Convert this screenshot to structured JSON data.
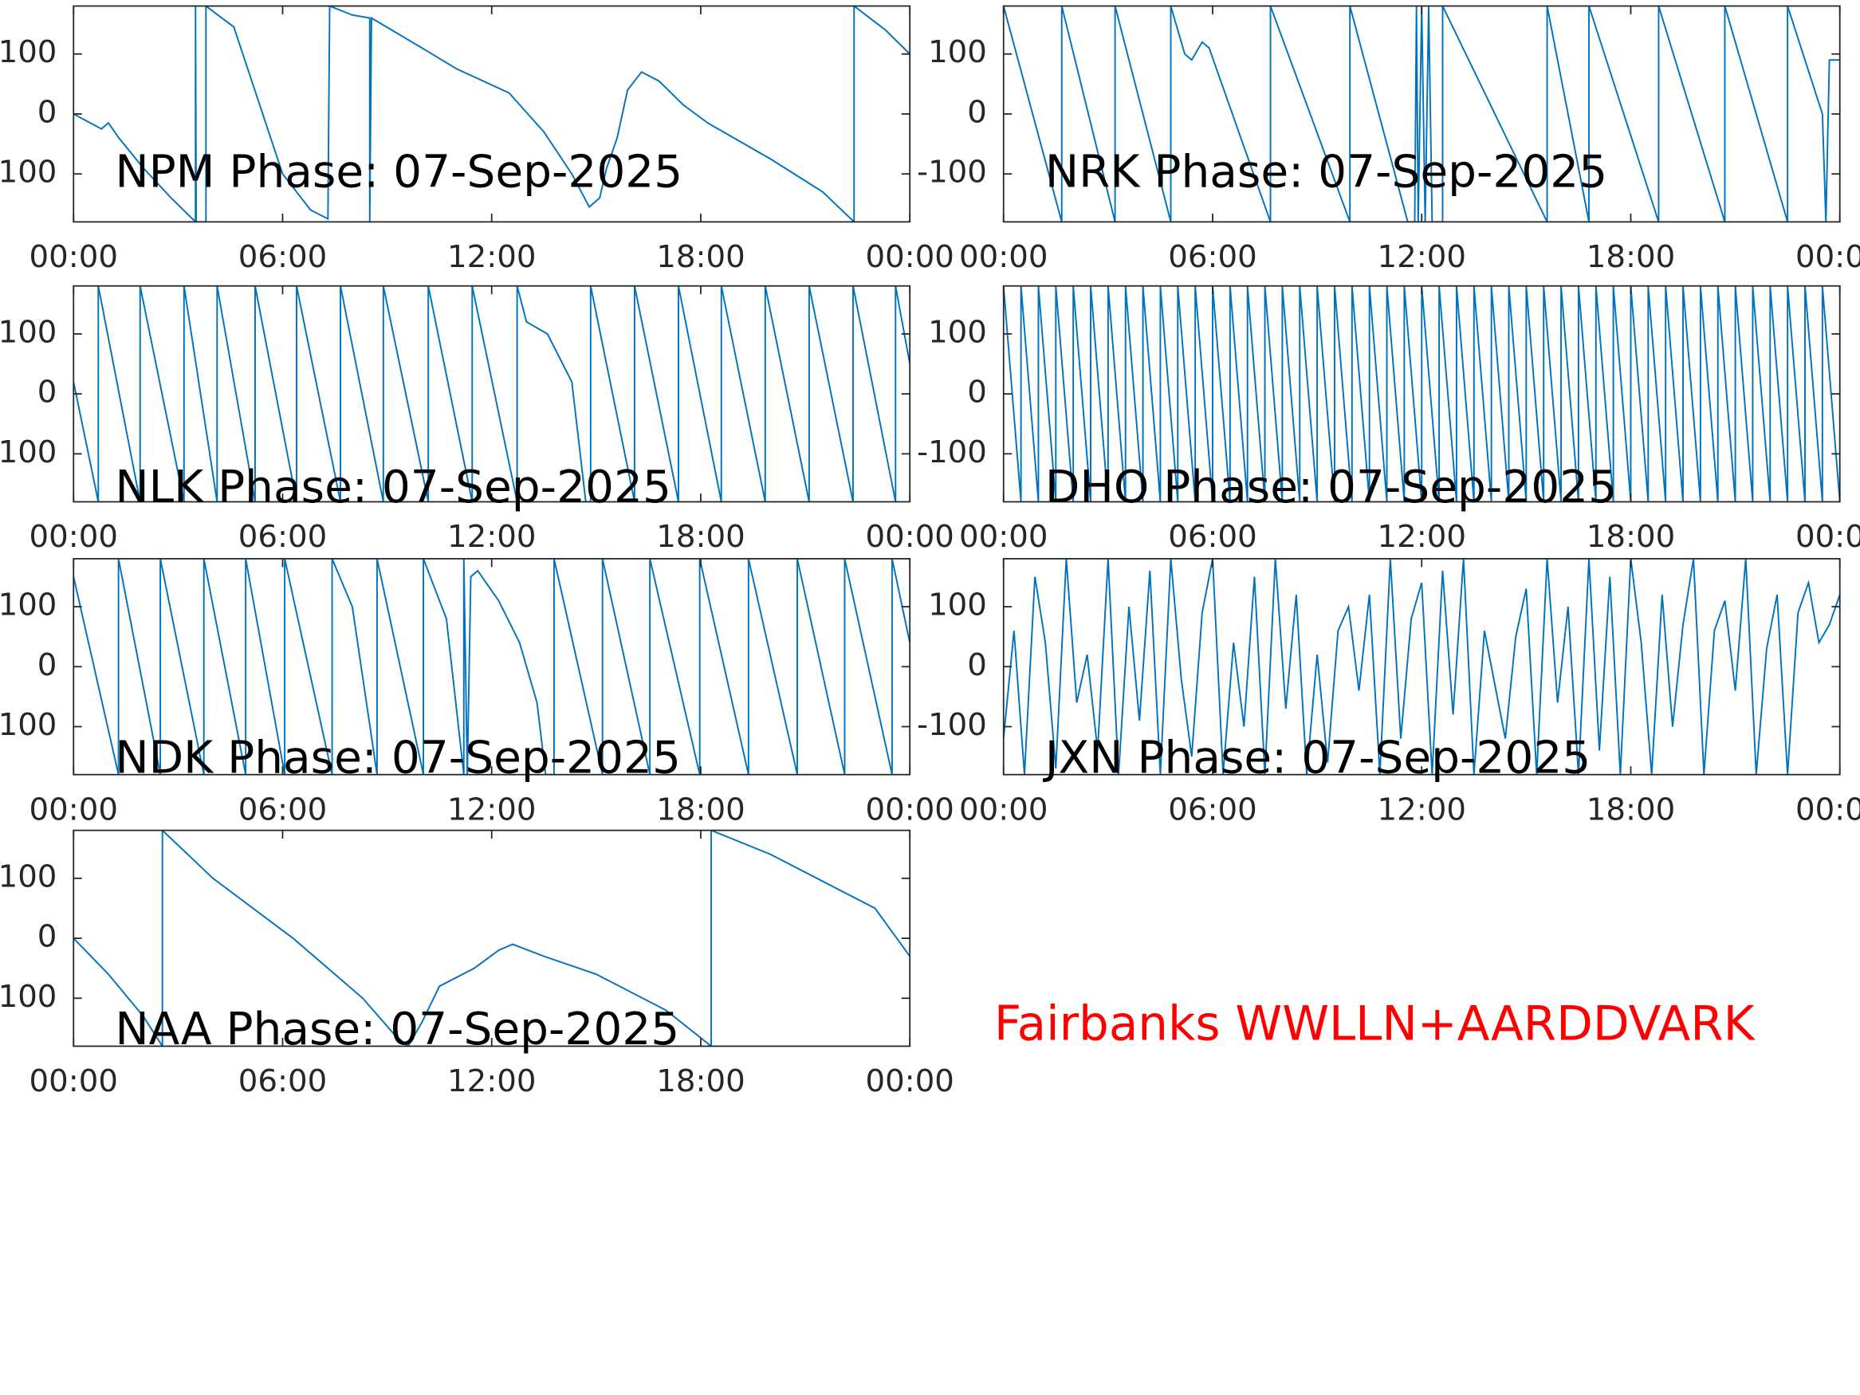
{
  "chart_data": [
    {
      "type": "line",
      "title": "NPM Phase: 07-Sep-2025",
      "color": "#0072bd",
      "x": [
        0,
        0.8,
        1.0,
        1.3,
        2.0,
        2.8,
        3.5,
        3.5,
        3.52,
        3.8,
        3.8,
        4.6,
        5.2,
        6.0,
        6.8,
        7.3,
        7.35,
        8.0,
        8.5,
        8.5,
        8.55,
        10.0,
        11.0,
        12.5,
        13.5,
        14.3,
        14.8,
        15.1,
        15.3,
        15.6,
        15.9,
        16.3,
        16.8,
        17.5,
        18.2,
        20.0,
        21.5,
        22.4,
        22.4,
        23.3,
        24
      ],
      "values": [
        0,
        -25,
        -15,
        -40,
        -90,
        -140,
        -180,
        180,
        -180,
        -180,
        180,
        145,
        40,
        -100,
        -160,
        -175,
        180,
        165,
        160,
        -180,
        160,
        110,
        75,
        35,
        -30,
        -100,
        -155,
        -140,
        -90,
        -40,
        40,
        70,
        55,
        15,
        -15,
        -75,
        -130,
        -180,
        180,
        140,
        100
      ],
      "xlim": [
        0,
        24
      ],
      "xticks": [
        {
          "value": 0,
          "label": "00:00"
        },
        {
          "value": 6,
          "label": "06:00"
        },
        {
          "value": 12,
          "label": "12:00"
        },
        {
          "value": 18,
          "label": "18:00"
        },
        {
          "value": 24,
          "label": "00:00"
        }
      ],
      "ylim": [
        -180,
        180
      ],
      "yticks": [
        -100,
        0,
        100
      ]
    },
    {
      "type": "line",
      "title": "NRK Phase: 07-Sep-2025",
      "color": "#0072bd",
      "x": [
        0,
        1.67,
        1.67,
        3.2,
        3.2,
        4.8,
        4.8,
        5.2,
        5.4,
        5.7,
        5.9,
        7.66,
        7.66,
        9.94,
        9.94,
        11.6,
        11.8,
        11.85,
        11.9,
        12.0,
        12.1,
        12.2,
        12.3,
        12.6,
        12.6,
        15.6,
        15.6,
        16.8,
        16.8,
        18.8,
        18.8,
        20.7,
        20.7,
        22.5,
        22.5,
        23.5,
        23.6,
        23.7,
        24
      ],
      "values": [
        180,
        -180,
        180,
        -180,
        180,
        -180,
        180,
        100,
        90,
        120,
        110,
        -180,
        180,
        -180,
        180,
        -180,
        -180,
        180,
        -180,
        180,
        -180,
        180,
        -180,
        -180,
        180,
        -180,
        180,
        -180,
        180,
        -180,
        180,
        -180,
        180,
        -180,
        180,
        0,
        -180,
        90,
        90
      ],
      "xlim": [
        0,
        24
      ],
      "xticks": [
        {
          "value": 0,
          "label": "00:00"
        },
        {
          "value": 6,
          "label": "06:00"
        },
        {
          "value": 12,
          "label": "12:00"
        },
        {
          "value": 18,
          "label": "18:00"
        },
        {
          "value": 24,
          "label": "00:00"
        }
      ],
      "ylim": [
        -180,
        180
      ],
      "yticks": [
        -100,
        0,
        100
      ]
    },
    {
      "type": "line",
      "title": "NLK Phase: 07-Sep-2025",
      "color": "#0072bd",
      "x": [
        0,
        0.71,
        0.71,
        1.91,
        1.91,
        3.17,
        3.17,
        4.12,
        4.12,
        5.21,
        5.21,
        6.4,
        6.4,
        7.66,
        7.66,
        8.89,
        8.89,
        10.18,
        10.18,
        11.44,
        11.44,
        12.73,
        12.73,
        13.0,
        13.6,
        14.3,
        14.7,
        14.84,
        14.84,
        16.1,
        16.1,
        17.36,
        17.36,
        18.59,
        18.59,
        19.85,
        19.85,
        21.11,
        21.11,
        22.37,
        22.37,
        23.59,
        23.59,
        24
      ],
      "values": [
        20,
        -180,
        180,
        -180,
        180,
        -180,
        180,
        -180,
        180,
        -180,
        180,
        -180,
        180,
        -180,
        180,
        -180,
        180,
        -180,
        180,
        -180,
        180,
        -180,
        180,
        120,
        100,
        20,
        -180,
        -180,
        180,
        -180,
        180,
        -180,
        180,
        -180,
        180,
        -180,
        180,
        -180,
        180,
        -180,
        180,
        -180,
        180,
        50
      ],
      "xlim": [
        0,
        24
      ],
      "xticks": [
        {
          "value": 0,
          "label": "00:00"
        },
        {
          "value": 6,
          "label": "06:00"
        },
        {
          "value": 12,
          "label": "12:00"
        },
        {
          "value": 18,
          "label": "18:00"
        },
        {
          "value": 24,
          "label": "00:00"
        }
      ],
      "ylim": [
        -180,
        180
      ],
      "yticks": [
        -100,
        0,
        100
      ]
    },
    {
      "type": "line",
      "title": "DHO Phase: 07-Sep-2025",
      "color": "#0072bd",
      "x": [
        0,
        0.5,
        0.5,
        1,
        1,
        1.5,
        1.5,
        2,
        2,
        2.5,
        2.5,
        3,
        3,
        3.5,
        3.5,
        4,
        4,
        4.5,
        4.5,
        5,
        5,
        5.5,
        5.5,
        6,
        6,
        6.5,
        6.5,
        7,
        7,
        7.5,
        7.5,
        8,
        8,
        8.5,
        8.5,
        9,
        9,
        9.5,
        9.5,
        10,
        10,
        10.5,
        10.5,
        11,
        11,
        11.5,
        11.5,
        12,
        12,
        12.5,
        12.5,
        13,
        13,
        13.5,
        13.5,
        14,
        14,
        14.5,
        14.5,
        15,
        15,
        15.5,
        15.5,
        16,
        16,
        16.5,
        16.5,
        17,
        17,
        17.5,
        17.5,
        18,
        18,
        18.5,
        18.5,
        19,
        19,
        19.5,
        19.5,
        20,
        20,
        20.5,
        20.5,
        21,
        21,
        21.5,
        21.5,
        22,
        22,
        22.5,
        22.5,
        23,
        23,
        23.5,
        23.5,
        24
      ],
      "values": [
        180,
        -180,
        180,
        -180,
        180,
        -180,
        180,
        -180,
        180,
        -180,
        180,
        -180,
        180,
        -180,
        180,
        -180,
        180,
        -180,
        180,
        -180,
        180,
        -180,
        180,
        -180,
        180,
        -180,
        180,
        -180,
        180,
        -180,
        180,
        -180,
        180,
        -180,
        180,
        -180,
        180,
        -180,
        180,
        -180,
        180,
        -180,
        180,
        -180,
        180,
        -180,
        180,
        -180,
        180,
        -180,
        180,
        -180,
        180,
        -180,
        180,
        -180,
        180,
        -180,
        180,
        -180,
        180,
        -180,
        180,
        -180,
        180,
        -180,
        180,
        -180,
        180,
        -180,
        180,
        -180,
        180,
        -180,
        180,
        -180,
        180,
        -180,
        180,
        -180,
        180,
        -180,
        180,
        -180,
        180,
        -180,
        180,
        -180,
        180,
        -180,
        180,
        -180,
        180,
        -180,
        180,
        -180
      ],
      "xlim": [
        0,
        24
      ],
      "xticks": [
        {
          "value": 0,
          "label": "00:00"
        },
        {
          "value": 6,
          "label": "06:00"
        },
        {
          "value": 12,
          "label": "12:00"
        },
        {
          "value": 18,
          "label": "18:00"
        },
        {
          "value": 24,
          "label": "00:00"
        }
      ],
      "ylim": [
        -180,
        180
      ],
      "yticks": [
        -100,
        0,
        100
      ]
    },
    {
      "type": "line",
      "title": "NDK Phase: 07-Sep-2025",
      "color": "#0072bd",
      "x": [
        0,
        1.29,
        1.29,
        2.49,
        2.49,
        3.74,
        3.74,
        4.94,
        4.94,
        6.06,
        6.06,
        7.42,
        7.42,
        8.0,
        8.71,
        8.71,
        10.04,
        10.04,
        10.7,
        11.2,
        11.2,
        11.3,
        11.4,
        11.6,
        12.2,
        12.8,
        13.3,
        13.55,
        13.79,
        13.79,
        15.18,
        15.18,
        16.54,
        16.54,
        17.97,
        17.97,
        19.37,
        19.37,
        20.77,
        20.77,
        22.13,
        22.13,
        23.49,
        23.49,
        24
      ],
      "values": [
        150,
        -180,
        180,
        -180,
        180,
        -180,
        180,
        -180,
        180,
        -180,
        180,
        -180,
        180,
        100,
        -180,
        180,
        -180,
        180,
        80,
        -180,
        180,
        -180,
        150,
        160,
        110,
        40,
        -60,
        -180,
        -180,
        180,
        -180,
        180,
        -180,
        180,
        -180,
        180,
        -180,
        180,
        -180,
        180,
        -180,
        180,
        -180,
        180,
        40
      ],
      "xlim": [
        0,
        24
      ],
      "xticks": [
        {
          "value": 0,
          "label": "00:00"
        },
        {
          "value": 6,
          "label": "06:00"
        },
        {
          "value": 12,
          "label": "12:00"
        },
        {
          "value": 18,
          "label": "18:00"
        },
        {
          "value": 24,
          "label": "00:00"
        }
      ],
      "ylim": [
        -180,
        180
      ],
      "yticks": [
        -100,
        0,
        100
      ]
    },
    {
      "type": "line",
      "title": "JXN Phase: 07-Sep-2025",
      "color": "#0072bd",
      "x": [
        0,
        0.3,
        0.6,
        0.9,
        1.2,
        1.5,
        1.8,
        2.1,
        2.4,
        2.7,
        3.0,
        3.3,
        3.6,
        3.9,
        4.2,
        4.5,
        4.8,
        5.1,
        5.4,
        5.7,
        6.0,
        6.3,
        6.6,
        6.9,
        7.2,
        7.5,
        7.8,
        8.1,
        8.4,
        8.7,
        9.0,
        9.3,
        9.6,
        9.9,
        10.2,
        10.5,
        10.8,
        11.1,
        11.4,
        11.7,
        12.0,
        12.3,
        12.6,
        12.9,
        13.2,
        13.5,
        13.8,
        14.1,
        14.4,
        14.7,
        15.0,
        15.3,
        15.6,
        15.9,
        16.2,
        16.5,
        16.8,
        17.1,
        17.4,
        17.7,
        18.0,
        18.3,
        18.6,
        18.9,
        19.2,
        19.5,
        19.8,
        20.1,
        20.4,
        20.7,
        21.0,
        21.3,
        21.6,
        21.9,
        22.2,
        22.5,
        22.8,
        23.1,
        23.4,
        23.7,
        24
      ],
      "values": [
        -120,
        60,
        -180,
        150,
        40,
        -170,
        180,
        -60,
        20,
        -140,
        180,
        -180,
        100,
        -90,
        160,
        -180,
        180,
        -20,
        -150,
        90,
        180,
        -180,
        40,
        -100,
        150,
        -180,
        180,
        -70,
        120,
        -180,
        20,
        -160,
        60,
        100,
        -40,
        120,
        -180,
        180,
        -120,
        80,
        140,
        -180,
        160,
        -80,
        180,
        -180,
        60,
        -30,
        -120,
        50,
        130,
        -180,
        180,
        -60,
        100,
        -180,
        180,
        -140,
        150,
        -180,
        180,
        40,
        -180,
        120,
        -100,
        70,
        180,
        -180,
        60,
        110,
        -40,
        180,
        -180,
        30,
        120,
        -180,
        90,
        140,
        40,
        70,
        120
      ],
      "xlim": [
        0,
        24
      ],
      "xticks": [
        {
          "value": 0,
          "label": "00:00"
        },
        {
          "value": 6,
          "label": "06:00"
        },
        {
          "value": 12,
          "label": "12:00"
        },
        {
          "value": 18,
          "label": "18:00"
        },
        {
          "value": 24,
          "label": "00:00"
        }
      ],
      "ylim": [
        -180,
        180
      ],
      "yticks": [
        -100,
        0,
        100
      ]
    },
    {
      "type": "line",
      "title": "NAA Phase: 07-Sep-2025",
      "color": "#0072bd",
      "x": [
        0,
        1.0,
        2.0,
        2.55,
        2.55,
        4.0,
        6.3,
        8.3,
        9.2,
        9.6,
        10.0,
        10.5,
        11.5,
        12.2,
        12.6,
        13.5,
        15.0,
        17.0,
        18.3,
        18.3,
        20.0,
        22.0,
        23.0,
        24
      ],
      "values": [
        0,
        -60,
        -130,
        -180,
        180,
        100,
        0,
        -100,
        -160,
        -180,
        -140,
        -80,
        -50,
        -20,
        -10,
        -30,
        -60,
        -120,
        -180,
        180,
        140,
        80,
        50,
        -30
      ],
      "xlim": [
        0,
        24
      ],
      "xticks": [
        {
          "value": 0,
          "label": "00:00"
        },
        {
          "value": 6,
          "label": "06:00"
        },
        {
          "value": 12,
          "label": "12:00"
        },
        {
          "value": 18,
          "label": "18:00"
        },
        {
          "value": 24,
          "label": "00:00"
        }
      ],
      "ylim": [
        -180,
        180
      ],
      "yticks": [
        -100,
        0,
        100
      ]
    }
  ],
  "annotation": "Fairbanks WWLLN+AARDDVARK"
}
